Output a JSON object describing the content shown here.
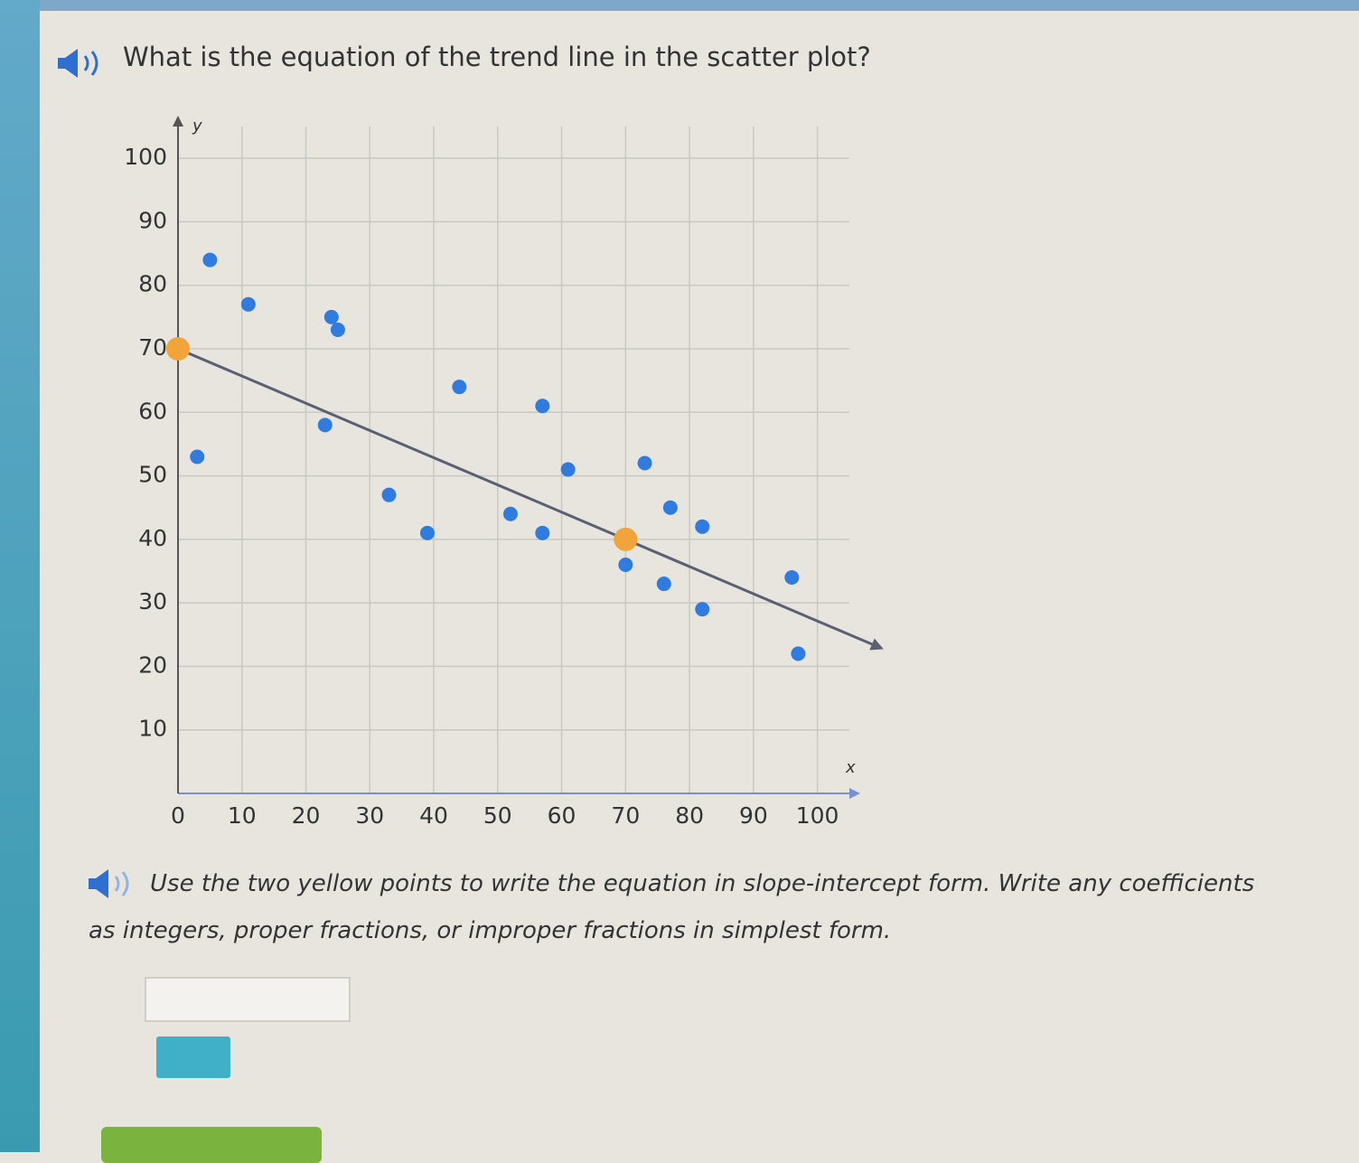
{
  "question": "What is the equation of the trend line in the scatter plot?",
  "chart_data": {
    "type": "scatter",
    "x_label": "x",
    "y_label": "y",
    "xlim": [
      0,
      105
    ],
    "ylim": [
      0,
      105
    ],
    "xticks": [
      0,
      10,
      20,
      30,
      40,
      50,
      60,
      70,
      80,
      90,
      100
    ],
    "yticks": [
      10,
      20,
      30,
      40,
      50,
      60,
      70,
      80,
      90,
      100
    ],
    "grid": true,
    "series": [
      {
        "color": "#2f7be0",
        "x": [
          5,
          11,
          24,
          25,
          3,
          23,
          44,
          57,
          33,
          39,
          52,
          57,
          61,
          73,
          77,
          82,
          70,
          76,
          82,
          96,
          97
        ],
        "y": [
          84,
          77,
          75,
          73,
          53,
          58,
          64,
          61,
          47,
          41,
          44,
          41,
          51,
          52,
          45,
          42,
          36,
          33,
          29,
          34,
          22
        ]
      },
      {
        "color": "#f0a43a",
        "x": [
          0,
          70
        ],
        "y": [
          70,
          40
        ]
      }
    ],
    "trend_line": {
      "color": "#5a5f73"
    }
  },
  "instruction": "Use the two yellow points to write the equation in slope-intercept form. Write any coefficients as integers, proper fractions, or improper fractions in simplest form."
}
